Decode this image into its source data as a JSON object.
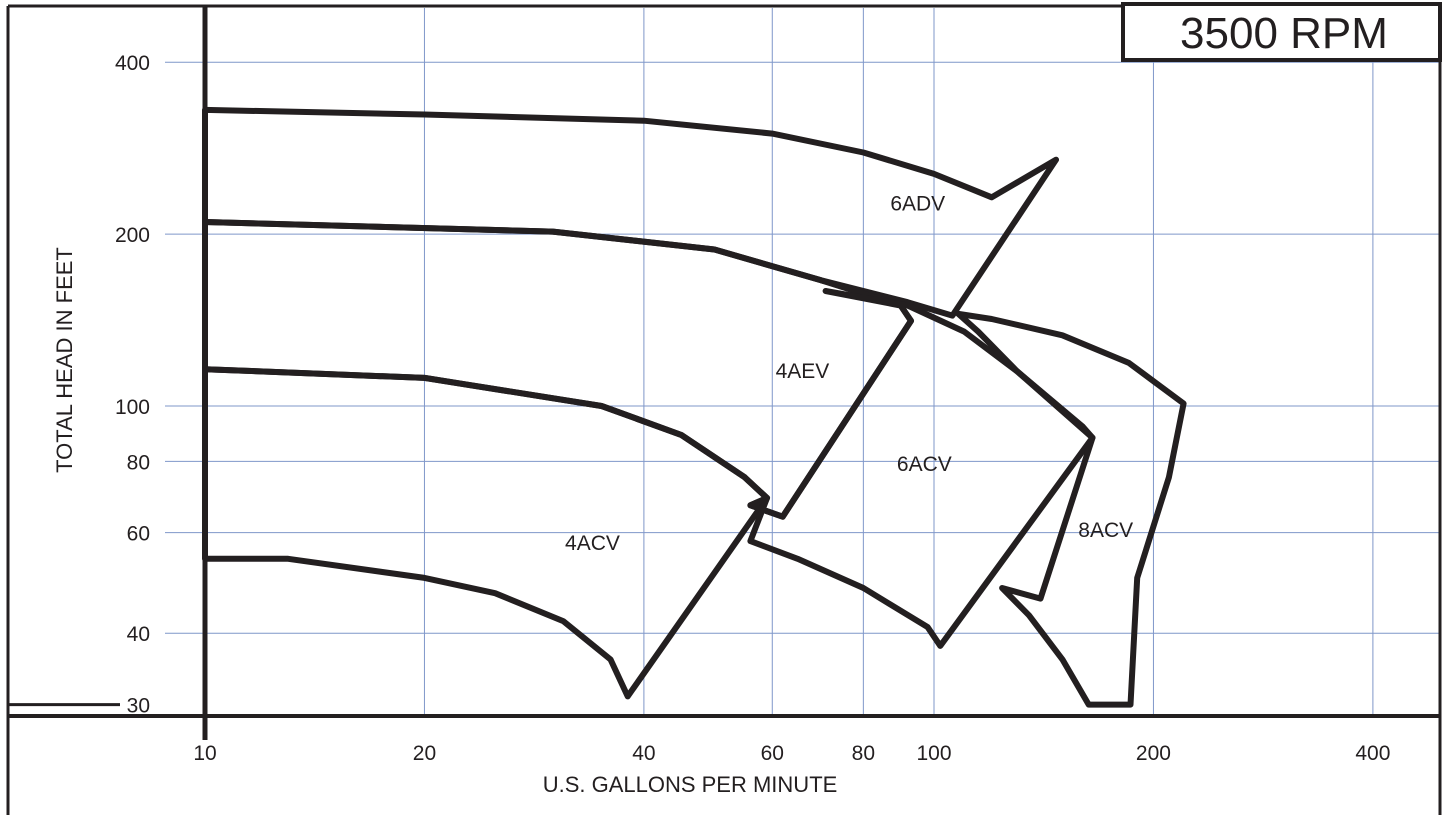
{
  "chart_data": {
    "type": "line",
    "title": "3500 RPM",
    "xlabel": "U.S. GALLONS PER MINUTE",
    "ylabel": "TOTAL HEAD IN FEET",
    "x_scale": "log",
    "y_scale": "log",
    "xlim": [
      10,
      500
    ],
    "ylim": [
      30,
      500
    ],
    "x_ticks": [
      10,
      20,
      40,
      60,
      80,
      100,
      200,
      400
    ],
    "y_ticks": [
      30,
      40,
      60,
      80,
      100,
      200,
      400
    ],
    "x_grid": [
      10,
      20,
      40,
      60,
      80,
      100,
      200,
      400
    ],
    "y_grid": [
      40,
      60,
      80,
      100,
      200,
      400
    ],
    "grid": true,
    "series": [
      {
        "name": "6ADV",
        "label_at": [
          95,
          220
        ],
        "outline": [
          [
            10,
            330
          ],
          [
            20,
            324
          ],
          [
            40,
            316
          ],
          [
            60,
            300
          ],
          [
            80,
            278
          ],
          [
            100,
            255
          ],
          [
            120,
            232
          ],
          [
            147,
            270
          ],
          [
            106,
            144
          ],
          [
            92,
            152
          ],
          [
            70,
            166
          ],
          [
            50,
            188
          ],
          [
            30,
            202
          ],
          [
            10,
            210
          ]
        ]
      },
      {
        "name": "4AEV",
        "label_at": [
          66,
          112
        ],
        "outline": [
          [
            10,
            210
          ],
          [
            30,
            202
          ],
          [
            50,
            188
          ],
          [
            70,
            166
          ],
          [
            90,
            150
          ],
          [
            93,
            141
          ],
          [
            62,
            64
          ],
          [
            56,
            67
          ],
          [
            59,
            69
          ],
          [
            55,
            75
          ],
          [
            45,
            89
          ],
          [
            35,
            100
          ],
          [
            20,
            112
          ],
          [
            10,
            116
          ]
        ]
      },
      {
        "name": "4ACV",
        "label_at": [
          34,
          56
        ],
        "outline": [
          [
            10,
            116
          ],
          [
            20,
            112
          ],
          [
            35,
            100
          ],
          [
            45,
            89
          ],
          [
            55,
            75
          ],
          [
            59,
            69
          ],
          [
            38,
            31
          ],
          [
            36,
            36
          ],
          [
            31,
            42
          ],
          [
            25,
            47
          ],
          [
            20,
            50
          ],
          [
            13,
            54
          ],
          [
            10,
            54
          ]
        ]
      },
      {
        "name": "6ACV",
        "label_at": [
          97,
          77
        ],
        "outline": [
          [
            71,
            159
          ],
          [
            92,
            150
          ],
          [
            110,
            135
          ],
          [
            130,
            115
          ],
          [
            160,
            92
          ],
          [
            165,
            88
          ],
          [
            102,
            38
          ],
          [
            98,
            41
          ],
          [
            80,
            48
          ],
          [
            65,
            54
          ],
          [
            56,
            58
          ],
          [
            59,
            69
          ],
          [
            56,
            67
          ],
          [
            62,
            64
          ],
          [
            93,
            141
          ],
          [
            90,
            150
          ],
          [
            71,
            159
          ]
        ]
      },
      {
        "name": "8ACV",
        "label_at": [
          172,
          59
        ],
        "outline": [
          [
            108,
            145
          ],
          [
            120,
            142
          ],
          [
            150,
            133
          ],
          [
            185,
            119
          ],
          [
            220,
            101
          ],
          [
            210,
            75
          ],
          [
            190,
            50
          ],
          [
            186,
            30
          ],
          [
            163,
            30
          ],
          [
            150,
            36
          ],
          [
            135,
            43
          ],
          [
            124,
            48
          ],
          [
            140,
            46
          ],
          [
            165,
            88
          ],
          [
            130,
            115
          ],
          [
            115,
            135
          ],
          [
            108,
            145
          ]
        ]
      }
    ]
  }
}
